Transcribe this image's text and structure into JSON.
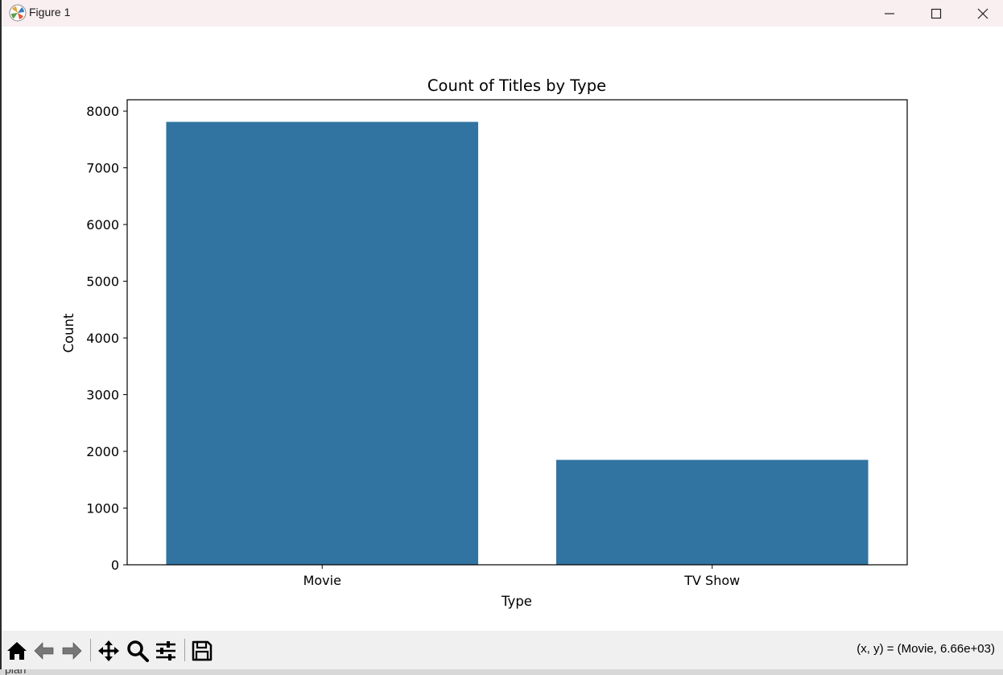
{
  "window": {
    "title": "Figure 1",
    "buttons": {
      "minimize": "minimize-icon",
      "maximize": "maximize-icon",
      "close": "close-icon"
    }
  },
  "chart_data": {
    "type": "bar",
    "title": "Count of Titles by Type",
    "xlabel": "Type",
    "ylabel": "Count",
    "categories": [
      "Movie",
      "TV Show"
    ],
    "values": [
      7810,
      1850
    ],
    "ylim": [
      0,
      8200
    ],
    "yticks": [
      0,
      1000,
      2000,
      3000,
      4000,
      5000,
      6000,
      7000,
      8000
    ],
    "bar_color": "#3274a1",
    "grid": false
  },
  "toolbar": {
    "icons": [
      "home-icon",
      "back-icon",
      "forward-icon",
      "pan-icon",
      "zoom-icon",
      "configure-subplots-icon",
      "save-icon"
    ],
    "coordinates": "(x, y) = (Movie, 6.66e+03)"
  },
  "background_text": "plan"
}
